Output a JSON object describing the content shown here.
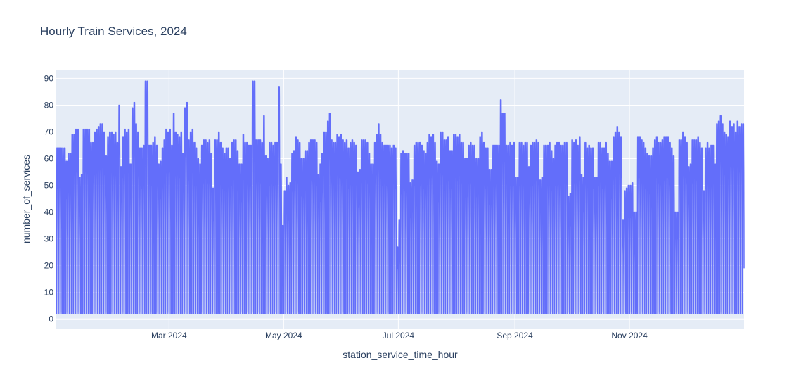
{
  "chart_data": {
    "type": "line",
    "title": "Hourly Train Services, 2024",
    "xlabel": "station_service_time_hour",
    "ylabel": "number_of_services",
    "xlim": [
      "2024-01-01 00:00",
      "2024-12-31 23:00"
    ],
    "ylim": [
      -3.5,
      93
    ],
    "x_resolution": "hourly",
    "x_ticks": [
      {
        "date": "2024-03-01",
        "label": "Mar 2024"
      },
      {
        "date": "2024-05-01",
        "label": "May 2024"
      },
      {
        "date": "2024-07-01",
        "label": "Jul 2024"
      },
      {
        "date": "2024-09-01",
        "label": "Sep 2024"
      },
      {
        "date": "2024-11-01",
        "label": "Nov 2024"
      }
    ],
    "y_ticks": [
      0,
      10,
      20,
      30,
      40,
      50,
      60,
      70,
      80,
      90
    ],
    "grid": true,
    "legend": "none",
    "line_color": "#636efa",
    "plot_bg": "#e5ecf6",
    "daily_overnight_min": 2,
    "daily_peak": [
      64,
      64,
      64,
      64,
      64,
      59,
      62,
      62,
      69,
      69,
      71,
      71,
      53,
      54,
      71,
      71,
      71,
      71,
      66,
      66,
      70,
      71,
      72,
      73,
      73,
      70,
      61,
      68,
      70,
      70,
      69,
      70,
      66,
      80,
      57,
      68,
      71,
      70,
      71,
      58,
      79,
      81,
      73,
      70,
      64,
      64,
      65,
      89,
      89,
      65,
      65,
      66,
      68,
      65,
      58,
      59,
      64,
      67,
      71,
      70,
      71,
      65,
      77,
      70,
      69,
      68,
      70,
      62,
      79,
      81,
      67,
      70,
      71,
      66,
      64,
      60,
      58,
      65,
      67,
      67,
      66,
      67,
      62,
      49,
      67,
      67,
      70,
      66,
      64,
      62,
      64,
      64,
      60,
      66,
      67,
      67,
      63,
      58,
      58,
      69,
      66,
      66,
      65,
      65,
      89,
      89,
      67,
      67,
      67,
      66,
      76,
      61,
      60,
      66,
      66,
      65,
      66,
      66,
      87,
      58,
      35,
      48,
      53,
      50,
      51,
      62,
      63,
      68,
      67,
      66,
      60,
      60,
      63,
      63,
      66,
      67,
      67,
      67,
      66,
      54,
      58,
      62,
      70,
      70,
      74,
      77,
      67,
      66,
      66,
      69,
      68,
      69,
      67,
      66,
      67,
      64,
      66,
      67,
      66,
      65,
      55,
      56,
      67,
      67,
      67,
      66,
      62,
      58,
      58,
      66,
      69,
      73,
      69,
      66,
      65,
      65,
      65,
      65,
      64,
      65,
      64,
      27,
      37,
      62,
      63,
      62,
      62,
      62,
      51,
      52,
      65,
      66,
      66,
      66,
      65,
      63,
      62,
      66,
      69,
      68,
      69,
      66,
      59,
      58,
      70,
      70,
      67,
      67,
      68,
      63,
      63,
      69,
      69,
      68,
      69,
      66,
      66,
      60,
      60,
      65,
      66,
      65,
      65,
      60,
      60,
      68,
      70,
      66,
      64,
      64,
      56,
      56,
      65,
      65,
      65,
      65,
      82,
      77,
      77,
      65,
      65,
      66,
      65,
      66,
      53,
      53,
      66,
      66,
      65,
      66,
      66,
      57,
      65,
      66,
      66,
      67,
      66,
      52,
      53,
      65,
      65,
      65,
      66,
      63,
      60,
      65,
      66,
      66,
      65,
      65,
      66,
      66,
      46,
      47,
      67,
      66,
      67,
      65,
      68,
      54,
      53,
      66,
      64,
      65,
      64,
      64,
      53,
      53,
      66,
      66,
      64,
      64,
      66,
      62,
      59,
      59,
      68,
      70,
      72,
      70,
      68,
      37,
      48,
      49,
      50,
      50,
      51,
      40,
      40,
      68,
      68,
      67,
      66,
      64,
      62,
      61,
      61,
      64,
      67,
      68,
      66,
      66,
      67,
      68,
      68,
      68,
      66,
      64,
      61,
      40,
      40,
      67,
      67,
      70,
      68,
      66,
      57,
      58,
      67,
      67,
      67,
      68,
      66,
      64,
      48,
      64,
      66,
      64,
      65,
      65,
      58,
      73,
      74,
      76,
      73,
      70,
      69,
      68,
      74,
      72,
      73,
      70,
      74,
      72,
      73,
      73
    ]
  }
}
